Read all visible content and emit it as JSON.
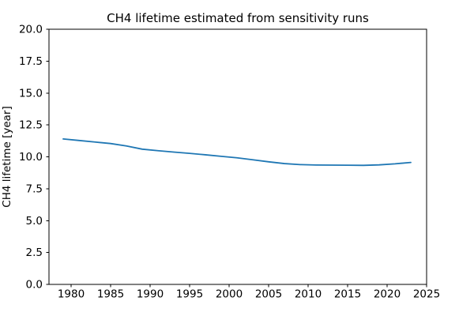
{
  "chart_data": {
    "type": "line",
    "title": "CH4 lifetime estimated from sensitivity runs",
    "xlabel": "",
    "ylabel": "CH4 lifetime [year]",
    "xlim": [
      1977.2,
      2025.0
    ],
    "ylim": [
      0.0,
      20.0
    ],
    "grid": false,
    "legend_position": "none",
    "background_color": "#ffffff",
    "spine_color": "#000000",
    "line_color": "#1f77b4",
    "xticks": [
      1980,
      1985,
      1990,
      1995,
      2000,
      2005,
      2010,
      2015,
      2020,
      2025
    ],
    "xtick_labels": [
      "1980",
      "1985",
      "1990",
      "1995",
      "2000",
      "2005",
      "2010",
      "2015",
      "2020",
      "2025"
    ],
    "yticks": [
      0.0,
      2.5,
      5.0,
      7.5,
      10.0,
      12.5,
      15.0,
      17.5,
      20.0
    ],
    "ytick_labels": [
      "0.0",
      "2.5",
      "5.0",
      "7.5",
      "10.0",
      "12.5",
      "15.0",
      "17.5",
      "20.0"
    ],
    "series": [
      {
        "name": "CH4 lifetime",
        "x": [
          1979,
          1981,
          1983,
          1985,
          1987,
          1989,
          1991,
          1993,
          1995,
          1997,
          1999,
          2001,
          2003,
          2005,
          2007,
          2009,
          2011,
          2013,
          2015,
          2017,
          2019,
          2021,
          2023
        ],
        "y": [
          11.4,
          11.28,
          11.16,
          11.04,
          10.85,
          10.6,
          10.48,
          10.37,
          10.27,
          10.16,
          10.04,
          9.92,
          9.77,
          9.61,
          9.47,
          9.39,
          9.36,
          9.35,
          9.34,
          9.33,
          9.37,
          9.45,
          9.56
        ]
      }
    ]
  }
}
